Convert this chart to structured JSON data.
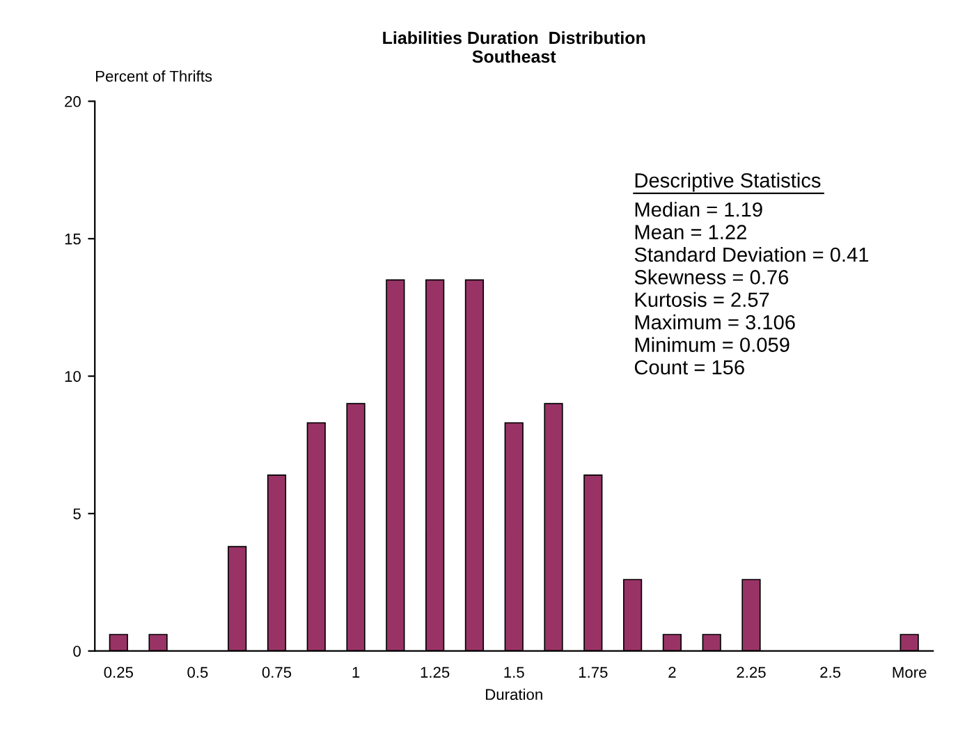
{
  "chart_data": {
    "type": "bar",
    "title": "Liabilities Duration  Distribution\nSoutheast",
    "xlabel": "Duration",
    "ylabel": "Percent of Thrifts",
    "categories": [
      "0.25",
      null,
      "0.5",
      null,
      "0.75",
      null,
      "1",
      null,
      "1.25",
      null,
      "1.5",
      null,
      "1.75",
      null,
      "2",
      null,
      "2.25",
      null,
      "2.5",
      null,
      "More"
    ],
    "values": [
      0.6,
      0.6,
      0,
      3.8,
      6.4,
      8.3,
      9.0,
      13.5,
      13.5,
      13.5,
      8.3,
      9.0,
      6.4,
      2.6,
      0.6,
      0.6,
      2.6,
      0,
      0,
      0,
      0.6
    ],
    "color": "#993366",
    "ylim": [
      0,
      20
    ],
    "yticks": [
      0,
      5,
      10,
      15,
      20
    ],
    "grid": false,
    "legend": false,
    "annotations": [
      "Descriptive Statistics",
      "Median = 1.19",
      "Mean = 1.22",
      "Standard Deviation = 0.41",
      "Skewness = 0.76",
      "Kurtosis = 2.57",
      "Maximum = 3.106",
      "Minimum = 0.059",
      "Count = 156"
    ]
  }
}
